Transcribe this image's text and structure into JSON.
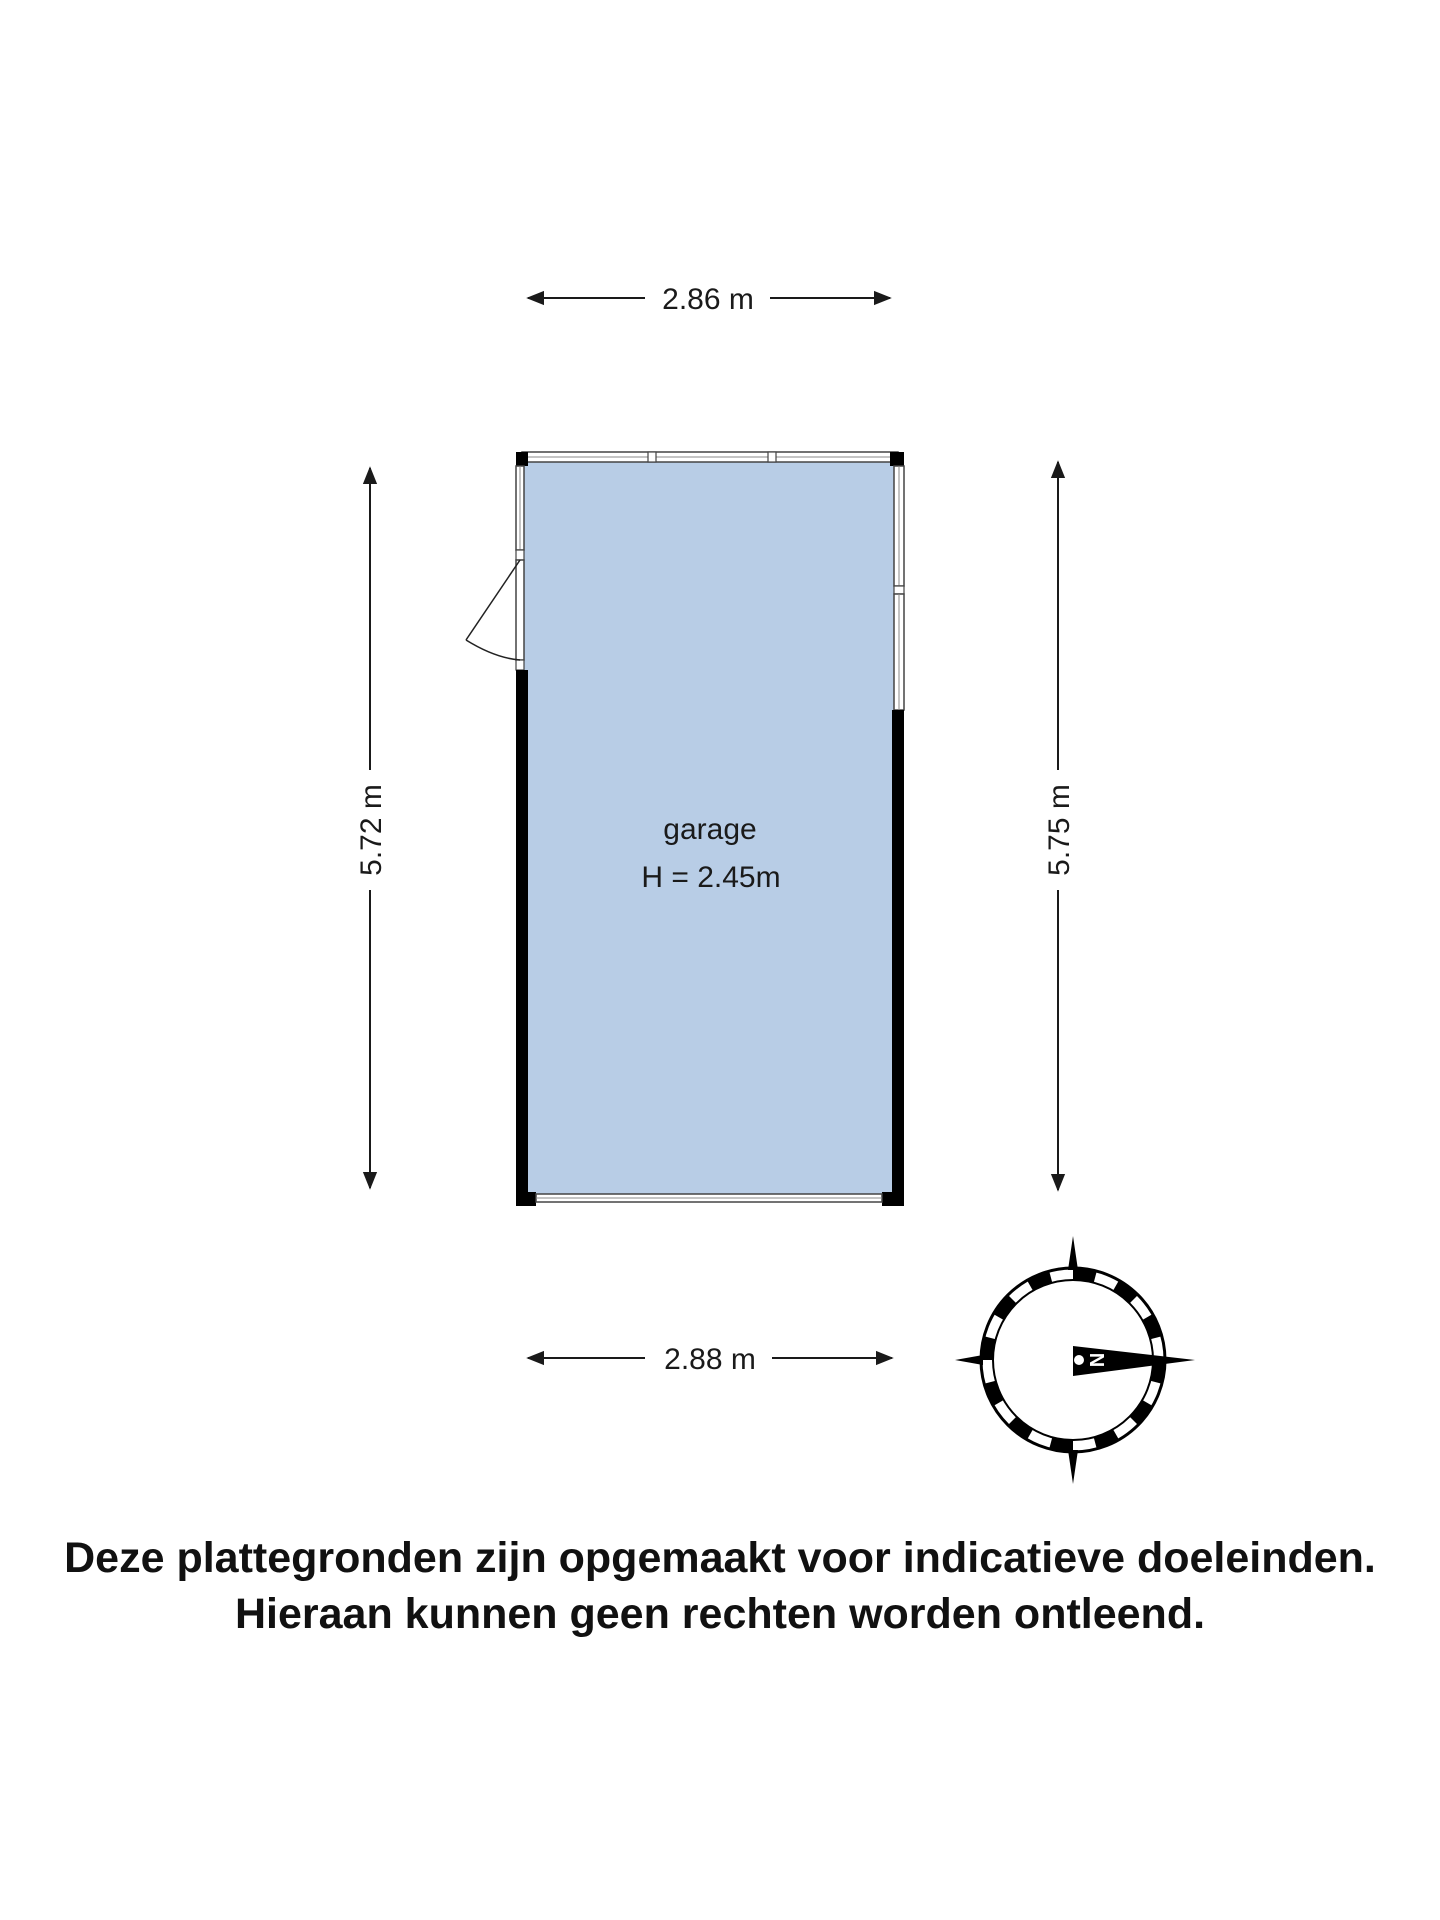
{
  "dimensions": {
    "top_width": "2.86 m",
    "bottom_width": "2.88 m",
    "left_height": "5.72 m",
    "right_height": "5.75 m"
  },
  "room": {
    "name": "garage",
    "height": "H = 2.45m",
    "fill_color": "#b8cde6",
    "wall_color": "#000000"
  },
  "compass": {
    "north_label": "N",
    "pointing": "east"
  },
  "disclaimer": {
    "line1": "Deze plattegronden zijn opgemaakt voor indicatieve doeleinden.",
    "line2": "Hieraan kunnen geen rechten worden ontleend."
  }
}
